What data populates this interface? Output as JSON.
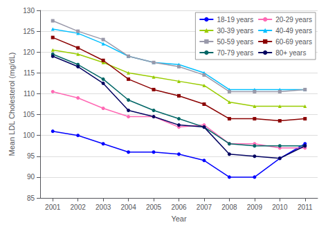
{
  "chart_data": {
    "type": "line",
    "x": [
      2001,
      2002,
      2003,
      2004,
      2005,
      2006,
      2007,
      2008,
      2009,
      2010,
      2011
    ],
    "series": [
      {
        "name": "18-19 years",
        "color": "#0000FF",
        "marker": "circle",
        "values": [
          101,
          100,
          98,
          96,
          96,
          95.5,
          94,
          90,
          90,
          94.5,
          98
        ]
      },
      {
        "name": "20-29 years",
        "color": "#FF69B4",
        "marker": "circle",
        "values": [
          110.5,
          109,
          106.5,
          104.5,
          104.5,
          102,
          102.5,
          98,
          98,
          97,
          97
        ]
      },
      {
        "name": "30-39 years",
        "color": "#99CC00",
        "marker": "triangle",
        "values": [
          120.5,
          119.5,
          117.5,
          115,
          114,
          113,
          112,
          108,
          107,
          107,
          107
        ]
      },
      {
        "name": "40-49 years",
        "color": "#00BFFF",
        "marker": "triangle",
        "values": [
          125.5,
          124.5,
          122,
          119,
          117.5,
          117,
          115,
          111,
          111,
          111,
          111
        ]
      },
      {
        "name": "50-59 years",
        "color": "#9999AA",
        "marker": "square",
        "values": [
          127.5,
          125,
          123,
          119,
          117.5,
          116.5,
          114.5,
          110.5,
          110.5,
          110.5,
          111
        ]
      },
      {
        "name": "60-69 years",
        "color": "#8B0000",
        "marker": "square",
        "values": [
          123.5,
          121,
          118,
          113.5,
          111,
          109.5,
          107.5,
          104,
          104,
          103.5,
          104
        ]
      },
      {
        "name": "70-79 years",
        "color": "#006666",
        "marker": "circle",
        "values": [
          119.5,
          117,
          113.5,
          108.5,
          106,
          104,
          102,
          98,
          97.5,
          97.5,
          97.5
        ]
      },
      {
        "name": "80+ years",
        "color": "#000060",
        "marker": "circle",
        "values": [
          119,
          116.5,
          112.5,
          106,
          104.5,
          102.5,
          102,
          95.5,
          95,
          94.5,
          97.5
        ]
      }
    ],
    "xlabel": "Year",
    "ylabel": "Mean LDL Cholesterol (mg/dL)",
    "xlim": [
      2000.5,
      2011.5
    ],
    "xticks": [
      2001,
      2002,
      2003,
      2004,
      2005,
      2006,
      2007,
      2008,
      2009,
      2010,
      2011
    ],
    "ylim": [
      85,
      130
    ],
    "yticks": [
      85,
      90,
      95,
      100,
      105,
      110,
      115,
      120,
      125,
      130
    ],
    "grid": true,
    "legend": "upper right"
  }
}
